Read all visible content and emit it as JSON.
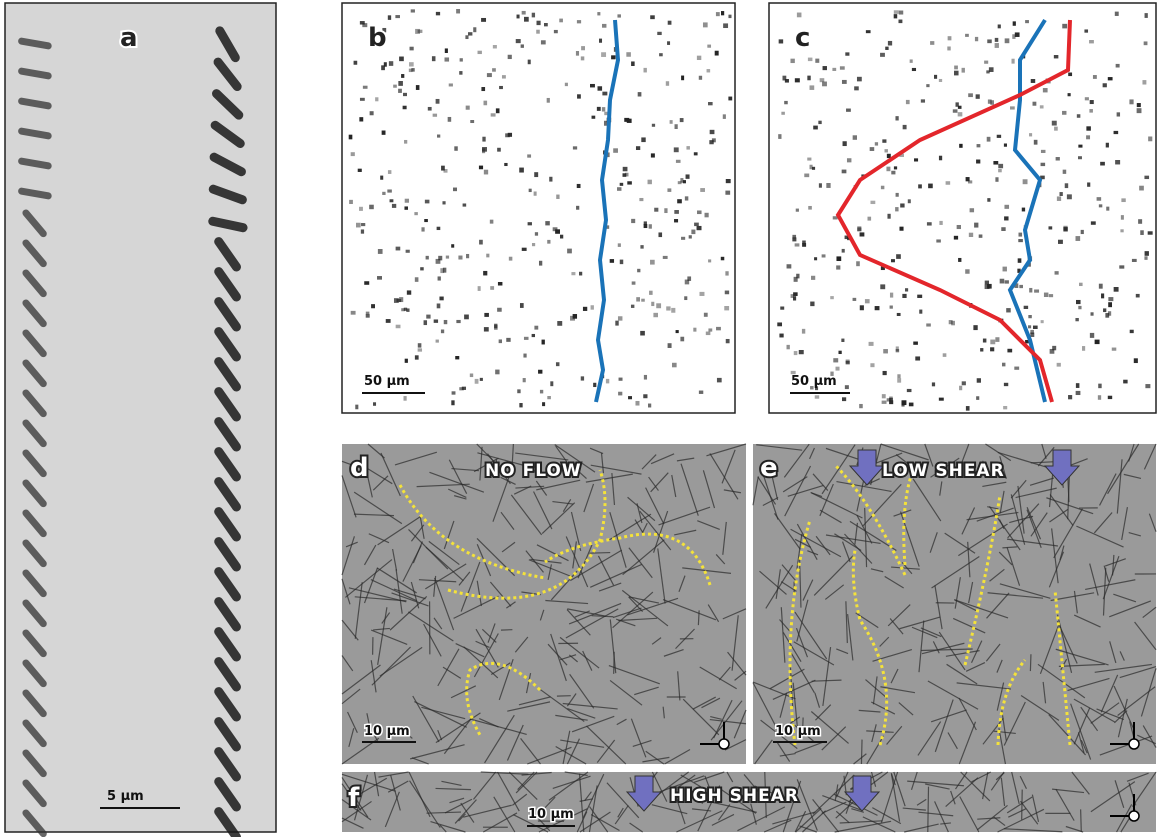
{
  "panels": [
    {
      "label": "a",
      "scale_bar": "5 µm"
    },
    {
      "label": "b",
      "scale_bar": "50 µm"
    },
    {
      "label": "c",
      "scale_bar": "50 µm"
    },
    {
      "label": "d",
      "caption": "NO FLOW",
      "scale_bar": "10 µm"
    },
    {
      "label": "e",
      "caption": "LOW SHEAR",
      "scale_bar": "10 µm"
    },
    {
      "label": "f",
      "caption": "HIGH SHEAR",
      "scale_bar": "10 µm"
    }
  ]
}
